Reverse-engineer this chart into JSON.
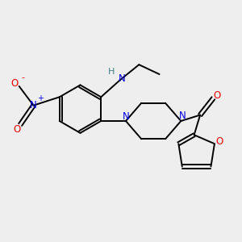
{
  "bg_color": "#eeeeee",
  "bond_color": "#000000",
  "N_color": "#0000ee",
  "O_color": "#ee0000",
  "H_color": "#408080",
  "figsize": [
    3.0,
    3.0
  ],
  "dpi": 100,
  "xlim": [
    0,
    10
  ],
  "ylim": [
    0,
    10
  ]
}
